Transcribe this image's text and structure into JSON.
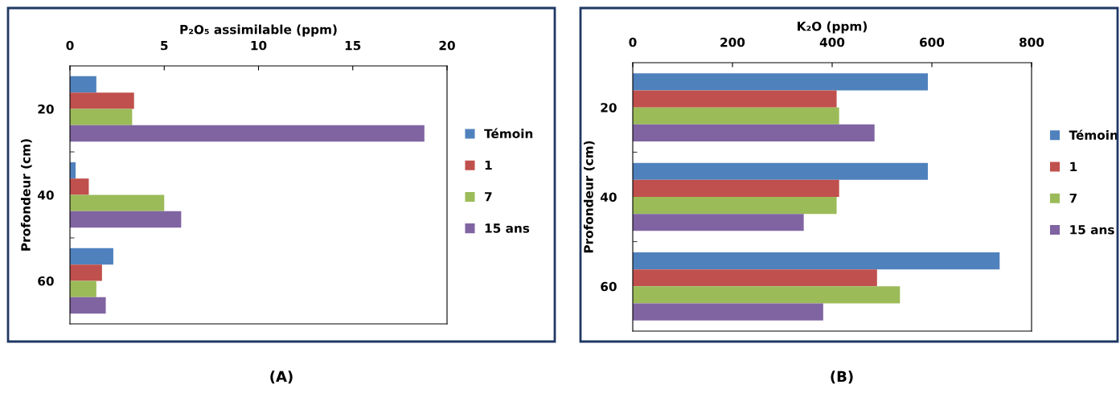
{
  "chart_data": [
    {
      "type": "bar",
      "orientation": "horizontal",
      "xlabel": "P₂O₅ assimilable (ppm)",
      "ylabel": "Profondeur (cm)",
      "categories": [
        "20",
        "40",
        "60"
      ],
      "xlim": [
        0,
        20
      ],
      "xticks": [
        0,
        5,
        10,
        15,
        20
      ],
      "legend": "right",
      "grid": false,
      "annotations": [
        "(A)"
      ],
      "series": [
        {
          "name": "Témoin",
          "color": "#4f81bd",
          "values": [
            1.4,
            0.3,
            2.3
          ]
        },
        {
          "name": "1",
          "color": "#c0504d",
          "values": [
            3.4,
            1.0,
            1.7
          ]
        },
        {
          "name": "7",
          "color": "#9bbb59",
          "values": [
            3.3,
            5.0,
            1.4
          ]
        },
        {
          "name": "15 ans",
          "color": "#8064a2",
          "values": [
            18.8,
            5.9,
            1.9
          ]
        }
      ]
    },
    {
      "type": "bar",
      "orientation": "horizontal",
      "xlabel": "K₂O (ppm)",
      "ylabel": "Profondeur (cm)",
      "categories": [
        "20",
        "40",
        "60"
      ],
      "xlim": [
        0,
        800
      ],
      "xticks": [
        0,
        200,
        400,
        600,
        800
      ],
      "legend": "right",
      "grid": false,
      "annotations": [
        "(B)"
      ],
      "series": [
        {
          "name": "Témoin",
          "color": "#4f81bd",
          "values": [
            592,
            592,
            736
          ]
        },
        {
          "name": "1",
          "color": "#c0504d",
          "values": [
            409,
            414,
            490
          ]
        },
        {
          "name": "7",
          "color": "#9bbb59",
          "values": [
            414,
            409,
            536
          ]
        },
        {
          "name": "15 ans",
          "color": "#8064a2",
          "values": [
            485,
            343,
            382
          ]
        }
      ]
    }
  ]
}
